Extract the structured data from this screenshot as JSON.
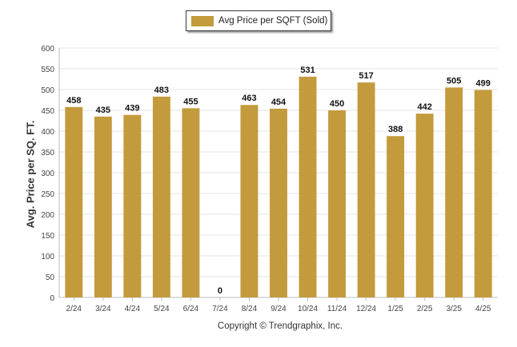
{
  "chart_data": {
    "type": "bar",
    "legend": {
      "label": "Avg Price per SQFT (Sold)",
      "position": "top-center"
    },
    "ylabel": "Avg. Price per SQ. FT.",
    "xlabel": "",
    "ylim": [
      0,
      600
    ],
    "yticks": [
      0,
      50,
      100,
      150,
      200,
      250,
      300,
      350,
      400,
      450,
      500,
      550,
      600
    ],
    "grid": true,
    "bar_color": "#c39b3c",
    "categories": [
      "2/24",
      "3/24",
      "4/24",
      "5/24",
      "6/24",
      "7/24",
      "8/24",
      "9/24",
      "10/24",
      "11/24",
      "12/24",
      "1/25",
      "2/25",
      "3/25",
      "4/25"
    ],
    "series": [
      {
        "values": [
          458,
          435,
          439,
          483,
          455,
          0,
          463,
          454,
          531,
          450,
          517,
          388,
          442,
          505,
          499
        ]
      }
    ]
  },
  "footer": {
    "copyright": "Copyright © Trendgraphix, Inc."
  }
}
